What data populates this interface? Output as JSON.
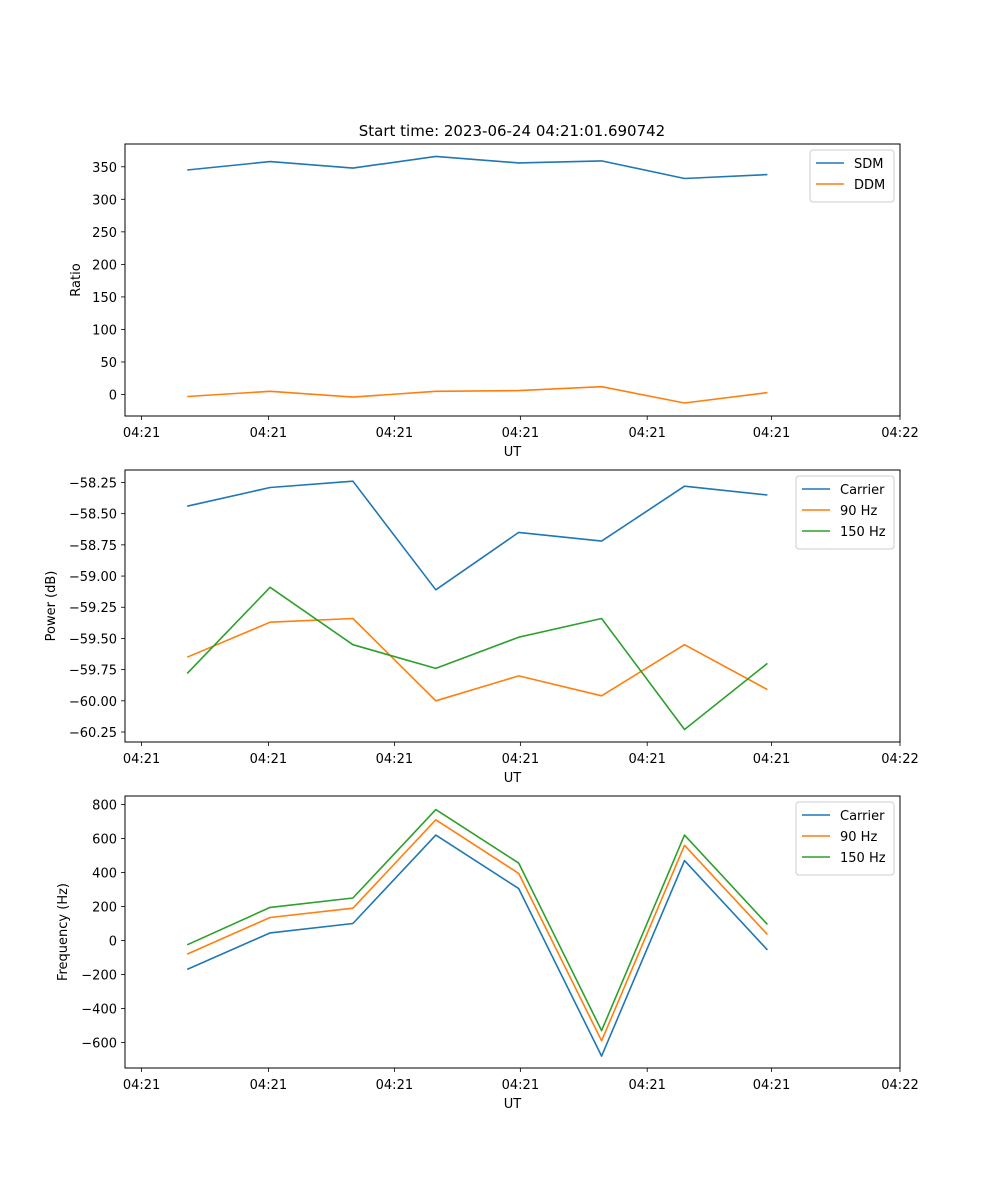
{
  "figure": {
    "title": "Start time: 2023-06-24 04:21:01.690742"
  },
  "chart_data": [
    {
      "type": "line",
      "title": "Start time: 2023-06-24 04:21:01.690742",
      "xlabel": "UT",
      "ylabel": "Ratio",
      "x": [
        1,
        2,
        3,
        4,
        5,
        6,
        7,
        8
      ],
      "xlim": [
        0.25,
        9.6
      ],
      "ylim": [
        -33,
        385
      ],
      "x_ticks": [
        0.45,
        1.98,
        3.5,
        5.02,
        6.55,
        8.05,
        9.6
      ],
      "x_tick_labels": [
        "04:21",
        "04:21",
        "04:21",
        "04:21",
        "04:21",
        "04:21",
        "04:22"
      ],
      "y_ticks": [
        0,
        50,
        100,
        150,
        200,
        250,
        300,
        350
      ],
      "y_tick_labels": [
        "0",
        "50",
        "100",
        "150",
        "200",
        "250",
        "300",
        "350"
      ],
      "grid": false,
      "legend_position": "top-right",
      "series": [
        {
          "name": "SDM",
          "color": "#1f77b4",
          "values": [
            345,
            358,
            348,
            366,
            356,
            359,
            332,
            338
          ]
        },
        {
          "name": "DDM",
          "color": "#ff7f0e",
          "values": [
            -3,
            5,
            -4,
            5,
            6,
            12,
            -13,
            3
          ]
        }
      ]
    },
    {
      "type": "line",
      "xlabel": "UT",
      "ylabel": "Power (dB)",
      "x": [
        1,
        2,
        3,
        4,
        5,
        6,
        7,
        8
      ],
      "xlim": [
        0.25,
        9.6
      ],
      "ylim": [
        -60.33,
        -58.15
      ],
      "x_ticks": [
        0.45,
        1.98,
        3.5,
        5.02,
        6.55,
        8.05,
        9.6
      ],
      "x_tick_labels": [
        "04:21",
        "04:21",
        "04:21",
        "04:21",
        "04:21",
        "04:21",
        "04:22"
      ],
      "y_ticks": [
        -60.25,
        -60.0,
        -59.75,
        -59.5,
        -59.25,
        -59.0,
        -58.75,
        -58.5,
        -58.25
      ],
      "y_tick_labels": [
        "−60.25",
        "−60.00",
        "−59.75",
        "−59.50",
        "−59.25",
        "−59.00",
        "−58.75",
        "−58.50",
        "−58.25"
      ],
      "grid": false,
      "legend_position": "top-right",
      "series": [
        {
          "name": "Carrier",
          "color": "#1f77b4",
          "values": [
            -58.44,
            -58.29,
            -58.24,
            -59.11,
            -58.65,
            -58.72,
            -58.28,
            -58.35
          ]
        },
        {
          "name": "90 Hz",
          "color": "#ff7f0e",
          "values": [
            -59.65,
            -59.37,
            -59.34,
            -60.0,
            -59.8,
            -59.96,
            -59.55,
            -59.91
          ]
        },
        {
          "name": "150 Hz",
          "color": "#2ca02c",
          "values": [
            -59.78,
            -59.09,
            -59.55,
            -59.74,
            -59.49,
            -59.34,
            -60.23,
            -59.7
          ]
        }
      ]
    },
    {
      "type": "line",
      "xlabel": "UT",
      "ylabel": "Frequency (Hz)",
      "x": [
        1,
        2,
        3,
        4,
        5,
        6,
        7,
        8
      ],
      "xlim": [
        0.25,
        9.6
      ],
      "ylim": [
        -750,
        850
      ],
      "x_ticks": [
        0.45,
        1.98,
        3.5,
        5.02,
        6.55,
        8.05,
        9.6
      ],
      "x_tick_labels": [
        "04:21",
        "04:21",
        "04:21",
        "04:21",
        "04:21",
        "04:21",
        "04:22"
      ],
      "y_ticks": [
        -600,
        -400,
        -200,
        0,
        200,
        400,
        600,
        800
      ],
      "y_tick_labels": [
        "−600",
        "−400",
        "−200",
        "0",
        "200",
        "400",
        "600",
        "800"
      ],
      "grid": false,
      "legend_position": "top-right",
      "series": [
        {
          "name": "Carrier",
          "color": "#1f77b4",
          "values": [
            -170,
            45,
            100,
            620,
            305,
            -680,
            470,
            -55
          ]
        },
        {
          "name": "90 Hz",
          "color": "#ff7f0e",
          "values": [
            -80,
            135,
            190,
            710,
            395,
            -590,
            560,
            35
          ]
        },
        {
          "name": "150 Hz",
          "color": "#2ca02c",
          "values": [
            -25,
            195,
            250,
            770,
            455,
            -530,
            620,
            95
          ]
        }
      ]
    }
  ]
}
